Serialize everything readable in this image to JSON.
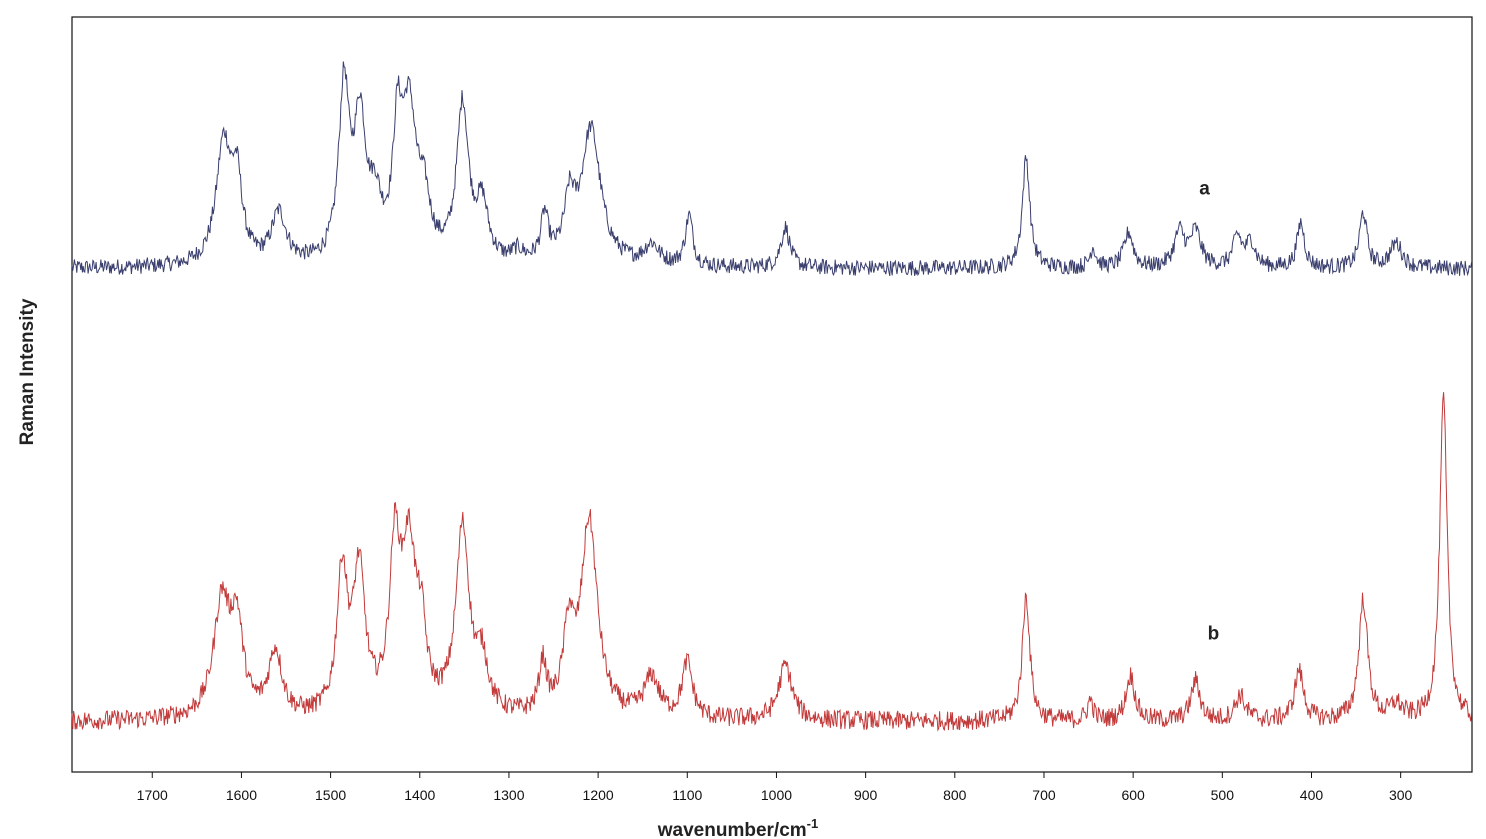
{
  "chart_data": {
    "type": "line",
    "title": "",
    "xlabel": "wavenumber/cm",
    "xlabel_superscript": "-1",
    "ylabel": "Raman Intensity",
    "xlim": [
      1790,
      220
    ],
    "x_reversed": true,
    "ylim": [
      0,
      150
    ],
    "y_ticks_shown": false,
    "grid": false,
    "legend": "none",
    "x_ticks": [
      1700,
      1600,
      1500,
      1400,
      1300,
      1200,
      1100,
      1000,
      900,
      800,
      700,
      600,
      500,
      400,
      300
    ],
    "series": [
      {
        "name": "a",
        "color": "#3a3f6e",
        "baseline": 100,
        "noise": 1.0,
        "peaks": [
          {
            "x": 1620,
            "h": 24,
            "w": 10
          },
          {
            "x": 1605,
            "h": 15,
            "w": 7
          },
          {
            "x": 1558,
            "h": 10,
            "w": 10
          },
          {
            "x": 1485,
            "h": 34,
            "w": 7
          },
          {
            "x": 1467,
            "h": 27,
            "w": 8
          },
          {
            "x": 1450,
            "h": 10,
            "w": 8
          },
          {
            "x": 1425,
            "h": 22,
            "w": 6
          },
          {
            "x": 1412,
            "h": 29,
            "w": 10
          },
          {
            "x": 1395,
            "h": 10,
            "w": 8
          },
          {
            "x": 1352,
            "h": 31,
            "w": 8
          },
          {
            "x": 1330,
            "h": 11,
            "w": 8
          },
          {
            "x": 1290,
            "h": 2,
            "w": 8
          },
          {
            "x": 1260,
            "h": 9,
            "w": 5
          },
          {
            "x": 1232,
            "h": 11,
            "w": 7
          },
          {
            "x": 1208,
            "h": 27,
            "w": 13
          },
          {
            "x": 1140,
            "h": 4,
            "w": 10
          },
          {
            "x": 1098,
            "h": 10,
            "w": 5
          },
          {
            "x": 990,
            "h": 8,
            "w": 6
          },
          {
            "x": 720,
            "h": 22,
            "w": 5
          },
          {
            "x": 645,
            "h": 4,
            "w": 4
          },
          {
            "x": 605,
            "h": 7,
            "w": 6
          },
          {
            "x": 548,
            "h": 7,
            "w": 7
          },
          {
            "x": 530,
            "h": 7,
            "w": 7
          },
          {
            "x": 483,
            "h": 6,
            "w": 6
          },
          {
            "x": 468,
            "h": 5,
            "w": 6
          },
          {
            "x": 412,
            "h": 9,
            "w": 5
          },
          {
            "x": 342,
            "h": 11,
            "w": 5
          },
          {
            "x": 305,
            "h": 5,
            "w": 8
          }
        ]
      },
      {
        "name": "b",
        "color": "#c23a3a",
        "baseline": 10,
        "noise": 1.2,
        "peaks": [
          {
            "x": 1622,
            "h": 23,
            "w": 11
          },
          {
            "x": 1605,
            "h": 17,
            "w": 8
          },
          {
            "x": 1562,
            "h": 13,
            "w": 9
          },
          {
            "x": 1487,
            "h": 28,
            "w": 7
          },
          {
            "x": 1468,
            "h": 28,
            "w": 8
          },
          {
            "x": 1428,
            "h": 30,
            "w": 7
          },
          {
            "x": 1412,
            "h": 32,
            "w": 10
          },
          {
            "x": 1398,
            "h": 12,
            "w": 6
          },
          {
            "x": 1352,
            "h": 37,
            "w": 9
          },
          {
            "x": 1330,
            "h": 10,
            "w": 8
          },
          {
            "x": 1262,
            "h": 10,
            "w": 5
          },
          {
            "x": 1233,
            "h": 16,
            "w": 7
          },
          {
            "x": 1210,
            "h": 39,
            "w": 11
          },
          {
            "x": 1140,
            "h": 8,
            "w": 10
          },
          {
            "x": 1100,
            "h": 11,
            "w": 7
          },
          {
            "x": 990,
            "h": 11,
            "w": 9
          },
          {
            "x": 720,
            "h": 25,
            "w": 5
          },
          {
            "x": 648,
            "h": 4,
            "w": 4
          },
          {
            "x": 603,
            "h": 9,
            "w": 6
          },
          {
            "x": 530,
            "h": 8,
            "w": 6
          },
          {
            "x": 480,
            "h": 5,
            "w": 7
          },
          {
            "x": 414,
            "h": 10,
            "w": 6
          },
          {
            "x": 342,
            "h": 24,
            "w": 6
          },
          {
            "x": 305,
            "h": 3,
            "w": 8
          },
          {
            "x": 252,
            "h": 64,
            "w": 5
          }
        ]
      }
    ]
  }
}
